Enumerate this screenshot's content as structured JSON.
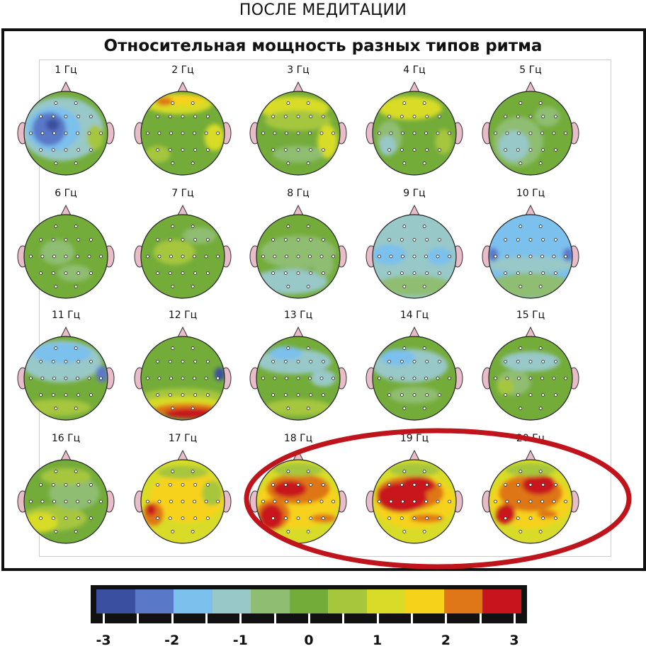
{
  "page_title": "ПОСЛЕ МЕДИТАЦИИ",
  "panel_title": "Относительная мощность разных типов ритма",
  "frequencies": [
    "1 Гц",
    "2 Гц",
    "3 Гц",
    "4 Гц",
    "5 Гц",
    "6 Гц",
    "7 Гц",
    "8 Гц",
    "9 Гц",
    "10 Гц",
    "11 Гц",
    "12 Гц",
    "13 Гц",
    "14 Гц",
    "15 Гц",
    "16 Гц",
    "17 Гц",
    "18 Гц",
    "19 Гц",
    "20 Гц"
  ],
  "highlighted_frequencies": [
    "18 Гц",
    "19 Гц",
    "20 Гц"
  ],
  "highlight_color": "#c0141c",
  "colorscale": {
    "colors": [
      "#3a4fa0",
      "#5a78c8",
      "#7cc0ee",
      "#98c8c8",
      "#8fbd72",
      "#74ac3a",
      "#a6c63c",
      "#d8dc28",
      "#f7d21a",
      "#df7618",
      "#c8141c"
    ],
    "labels": [
      "-3",
      "-2",
      "-1",
      "0",
      "1",
      "2",
      "3"
    ],
    "min": -3,
    "max": 3
  },
  "maps": [
    {
      "base": "#74ac3a",
      "blobs": [
        [
          "#98c8c8",
          0.45,
          0.45,
          0.5,
          0.38
        ],
        [
          "#7cc0ee",
          0.35,
          0.45,
          0.32,
          0.26
        ],
        [
          "#5a78c8",
          0.3,
          0.45,
          0.2,
          0.2
        ],
        [
          "#3a4fa0",
          0.34,
          0.4,
          0.08,
          0.07
        ],
        [
          "#a6c63c",
          0.85,
          0.55,
          0.1,
          0.15
        ]
      ]
    },
    {
      "base": "#74ac3a",
      "blobs": [
        [
          "#d8dc28",
          0.45,
          0.15,
          0.4,
          0.12
        ],
        [
          "#f7d21a",
          0.5,
          0.1,
          0.25,
          0.06
        ],
        [
          "#df7618",
          0.28,
          0.12,
          0.1,
          0.05
        ],
        [
          "#d8dc28",
          0.88,
          0.55,
          0.12,
          0.16
        ],
        [
          "#a6c63c",
          0.2,
          0.75,
          0.15,
          0.1
        ]
      ]
    },
    {
      "base": "#74ac3a",
      "blobs": [
        [
          "#d8dc28",
          0.45,
          0.2,
          0.42,
          0.14
        ],
        [
          "#a6c63c",
          0.5,
          0.35,
          0.4,
          0.12
        ],
        [
          "#d8dc28",
          0.85,
          0.6,
          0.12,
          0.2
        ],
        [
          "#8fbd72",
          0.5,
          0.75,
          0.3,
          0.1
        ]
      ]
    },
    {
      "base": "#74ac3a",
      "blobs": [
        [
          "#d8dc28",
          0.45,
          0.2,
          0.38,
          0.14
        ],
        [
          "#8fbd72",
          0.2,
          0.55,
          0.15,
          0.2
        ],
        [
          "#98c8c8",
          0.18,
          0.65,
          0.1,
          0.12
        ],
        [
          "#a6c63c",
          0.85,
          0.6,
          0.1,
          0.15
        ]
      ]
    },
    {
      "base": "#74ac3a",
      "blobs": [
        [
          "#8fbd72",
          0.35,
          0.6,
          0.3,
          0.3
        ],
        [
          "#98c8c8",
          0.3,
          0.65,
          0.18,
          0.18
        ],
        [
          "#8fbd72",
          0.7,
          0.3,
          0.15,
          0.12
        ]
      ]
    },
    {
      "base": "#74ac3a",
      "blobs": [
        [
          "#8fbd72",
          0.4,
          0.45,
          0.2,
          0.15
        ],
        [
          "#8fbd72",
          0.6,
          0.7,
          0.2,
          0.1
        ]
      ]
    },
    {
      "base": "#74ac3a",
      "blobs": [
        [
          "#a6c63c",
          0.4,
          0.45,
          0.25,
          0.15
        ],
        [
          "#8fbd72",
          0.7,
          0.25,
          0.2,
          0.1
        ]
      ]
    },
    {
      "base": "#74ac3a",
      "blobs": [
        [
          "#8fbd72",
          0.5,
          0.45,
          0.45,
          0.2
        ],
        [
          "#98c8c8",
          0.4,
          0.8,
          0.45,
          0.15
        ],
        [
          "#8fbd72",
          0.8,
          0.6,
          0.12,
          0.15
        ]
      ]
    },
    {
      "base": "#98c8c8",
      "blobs": [
        [
          "#7cc0ee",
          0.2,
          0.48,
          0.2,
          0.12
        ],
        [
          "#7cc0ee",
          0.8,
          0.5,
          0.15,
          0.1
        ],
        [
          "#8fbd72",
          0.5,
          0.85,
          0.45,
          0.12
        ]
      ]
    },
    {
      "base": "#7cc0ee",
      "blobs": [
        [
          "#98c8c8",
          0.5,
          0.6,
          0.55,
          0.1
        ],
        [
          "#8fbd72",
          0.5,
          0.85,
          0.5,
          0.15
        ],
        [
          "#5a78c8",
          0.05,
          0.48,
          0.06,
          0.08
        ],
        [
          "#5a78c8",
          0.95,
          0.48,
          0.06,
          0.08
        ]
      ]
    },
    {
      "base": "#74ac3a",
      "blobs": [
        [
          "#98c8c8",
          0.45,
          0.3,
          0.48,
          0.25
        ],
        [
          "#7cc0ee",
          0.45,
          0.2,
          0.35,
          0.12
        ],
        [
          "#5a78c8",
          0.93,
          0.45,
          0.07,
          0.1
        ],
        [
          "#a6c63c",
          0.4,
          0.85,
          0.4,
          0.1
        ]
      ]
    },
    {
      "base": "#74ac3a",
      "blobs": [
        [
          "#a6c63c",
          0.5,
          0.72,
          0.5,
          0.1
        ],
        [
          "#d8dc28",
          0.5,
          0.8,
          0.45,
          0.08
        ],
        [
          "#df7618",
          0.55,
          0.88,
          0.4,
          0.08
        ],
        [
          "#c8141c",
          0.6,
          0.92,
          0.32,
          0.06
        ],
        [
          "#3a4fa0",
          0.94,
          0.45,
          0.06,
          0.08
        ]
      ]
    },
    {
      "base": "#74ac3a",
      "blobs": [
        [
          "#98c8c8",
          0.45,
          0.3,
          0.45,
          0.15
        ],
        [
          "#7cc0ee",
          0.35,
          0.2,
          0.2,
          0.08
        ],
        [
          "#98c8c8",
          0.8,
          0.5,
          0.15,
          0.1
        ],
        [
          "#a6c63c",
          0.5,
          0.85,
          0.4,
          0.1
        ]
      ]
    },
    {
      "base": "#74ac3a",
      "blobs": [
        [
          "#98c8c8",
          0.45,
          0.35,
          0.45,
          0.2
        ],
        [
          "#7cc0ee",
          0.3,
          0.25,
          0.2,
          0.1
        ],
        [
          "#8fbd72",
          0.5,
          0.7,
          0.3,
          0.1
        ]
      ]
    },
    {
      "base": "#74ac3a",
      "blobs": [
        [
          "#98c8c8",
          0.5,
          0.3,
          0.35,
          0.12
        ],
        [
          "#8fbd72",
          0.3,
          0.55,
          0.2,
          0.15
        ],
        [
          "#a6c63c",
          0.2,
          0.6,
          0.1,
          0.1
        ]
      ]
    },
    {
      "base": "#74ac3a",
      "blobs": [
        [
          "#a6c63c",
          0.35,
          0.7,
          0.4,
          0.15
        ],
        [
          "#d8dc28",
          0.2,
          0.75,
          0.2,
          0.12
        ],
        [
          "#8fbd72",
          0.6,
          0.4,
          0.3,
          0.2
        ],
        [
          "#a6c63c",
          0.5,
          0.2,
          0.3,
          0.1
        ]
      ]
    },
    {
      "base": "#d8dc28",
      "blobs": [
        [
          "#f7d21a",
          0.55,
          0.45,
          0.45,
          0.3
        ],
        [
          "#df7618",
          0.15,
          0.65,
          0.12,
          0.14
        ],
        [
          "#c8141c",
          0.12,
          0.6,
          0.06,
          0.07
        ],
        [
          "#a6c63c",
          0.85,
          0.4,
          0.12,
          0.15
        ],
        [
          "#a6c63c",
          0.5,
          0.15,
          0.3,
          0.08
        ]
      ]
    },
    {
      "base": "#d8dc28",
      "blobs": [
        [
          "#f7d21a",
          0.5,
          0.5,
          0.48,
          0.32
        ],
        [
          "#df7618",
          0.5,
          0.35,
          0.38,
          0.18
        ],
        [
          "#c8141c",
          0.4,
          0.35,
          0.2,
          0.1
        ],
        [
          "#df7618",
          0.2,
          0.65,
          0.2,
          0.18
        ],
        [
          "#c8141c",
          0.18,
          0.68,
          0.14,
          0.15
        ],
        [
          "#df7618",
          0.8,
          0.7,
          0.15,
          0.05
        ],
        [
          "#a6c63c",
          0.5,
          0.12,
          0.3,
          0.08
        ]
      ]
    },
    {
      "base": "#d8dc28",
      "blobs": [
        [
          "#f7d21a",
          0.5,
          0.5,
          0.48,
          0.32
        ],
        [
          "#df7618",
          0.45,
          0.4,
          0.4,
          0.2
        ],
        [
          "#c8141c",
          0.35,
          0.45,
          0.3,
          0.18
        ],
        [
          "#c8141c",
          0.55,
          0.3,
          0.2,
          0.1
        ],
        [
          "#df7618",
          0.65,
          0.7,
          0.2,
          0.05
        ],
        [
          "#a6c63c",
          0.5,
          0.12,
          0.3,
          0.08
        ]
      ]
    },
    {
      "base": "#d8dc28",
      "blobs": [
        [
          "#f7d21a",
          0.5,
          0.5,
          0.48,
          0.32
        ],
        [
          "#df7618",
          0.5,
          0.4,
          0.38,
          0.22
        ],
        [
          "#c8141c",
          0.6,
          0.3,
          0.2,
          0.12
        ],
        [
          "#c8141c",
          0.2,
          0.65,
          0.12,
          0.12
        ],
        [
          "#df7618",
          0.7,
          0.65,
          0.12,
          0.05
        ],
        [
          "#a6c63c",
          0.5,
          0.12,
          0.3,
          0.08
        ]
      ]
    }
  ]
}
